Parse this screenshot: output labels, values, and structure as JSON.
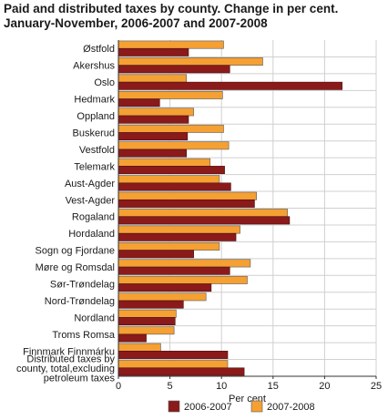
{
  "chart_data": {
    "type": "bar",
    "orientation": "horizontal",
    "title_lines": [
      "Paid and distributed taxes by county. Change in per cent.",
      "January-November, 2006-2007 and 2007-2008"
    ],
    "xlabel": "Per cent",
    "xlim": [
      0,
      25
    ],
    "xticks": [
      0,
      5,
      10,
      15,
      20,
      25
    ],
    "grid": true,
    "legend_position": "bottom",
    "categories": [
      [
        "Østfold"
      ],
      [
        "Akershus"
      ],
      [
        "Oslo"
      ],
      [
        "Hedmark"
      ],
      [
        "Oppland"
      ],
      [
        "Buskerud"
      ],
      [
        "Vestfold"
      ],
      [
        "Telemark"
      ],
      [
        "Aust-Agder"
      ],
      [
        "Vest-Agder"
      ],
      [
        "Rogaland"
      ],
      [
        "Hordaland"
      ],
      [
        "Sogn og Fjordane"
      ],
      [
        "Møre og Romsdal"
      ],
      [
        "Sør-Trøndelag"
      ],
      [
        "Nord-Trøndelag"
      ],
      [
        "Nordland"
      ],
      [
        "Troms Romsa"
      ],
      [
        "Finnmark Finnmárku"
      ],
      [
        "Distributed taxes by",
        "county, total,excluding",
        "petroleum taxes"
      ]
    ],
    "series": [
      {
        "name": "2006-2007",
        "color": "#8b1a1a",
        "values": [
          6.8,
          10.8,
          21.7,
          4.0,
          6.8,
          6.7,
          6.6,
          10.3,
          10.9,
          13.2,
          16.6,
          11.4,
          7.3,
          10.8,
          9.0,
          6.3,
          5.5,
          2.7,
          10.6,
          12.2
        ]
      },
      {
        "name": "2007-2008",
        "color": "#f5a033",
        "values": [
          10.2,
          14.0,
          6.6,
          10.1,
          7.3,
          10.2,
          10.7,
          8.9,
          9.8,
          13.4,
          16.4,
          11.8,
          9.8,
          12.8,
          12.5,
          8.5,
          5.6,
          5.4,
          4.1,
          10.6
        ]
      }
    ]
  }
}
